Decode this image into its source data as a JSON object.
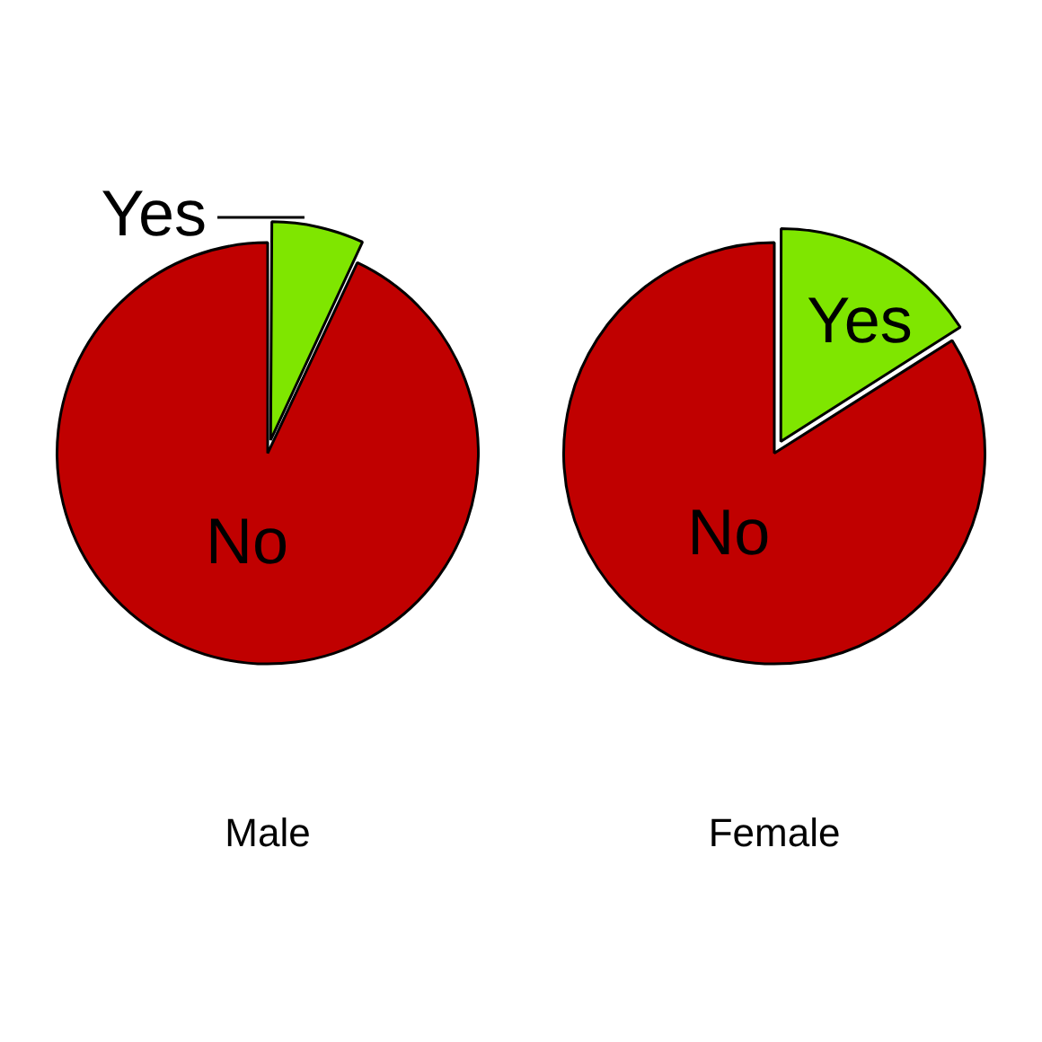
{
  "chart_data": [
    {
      "type": "pie",
      "title": "Male",
      "categories": [
        "Yes",
        "No"
      ],
      "values": [
        7,
        93
      ],
      "colors": [
        "#7fe600",
        "#c00000"
      ],
      "legend": false
    },
    {
      "type": "pie",
      "title": "Female",
      "categories": [
        "Yes",
        "No"
      ],
      "values": [
        16,
        84
      ],
      "colors": [
        "#7fe600",
        "#c00000"
      ],
      "legend": false
    }
  ]
}
